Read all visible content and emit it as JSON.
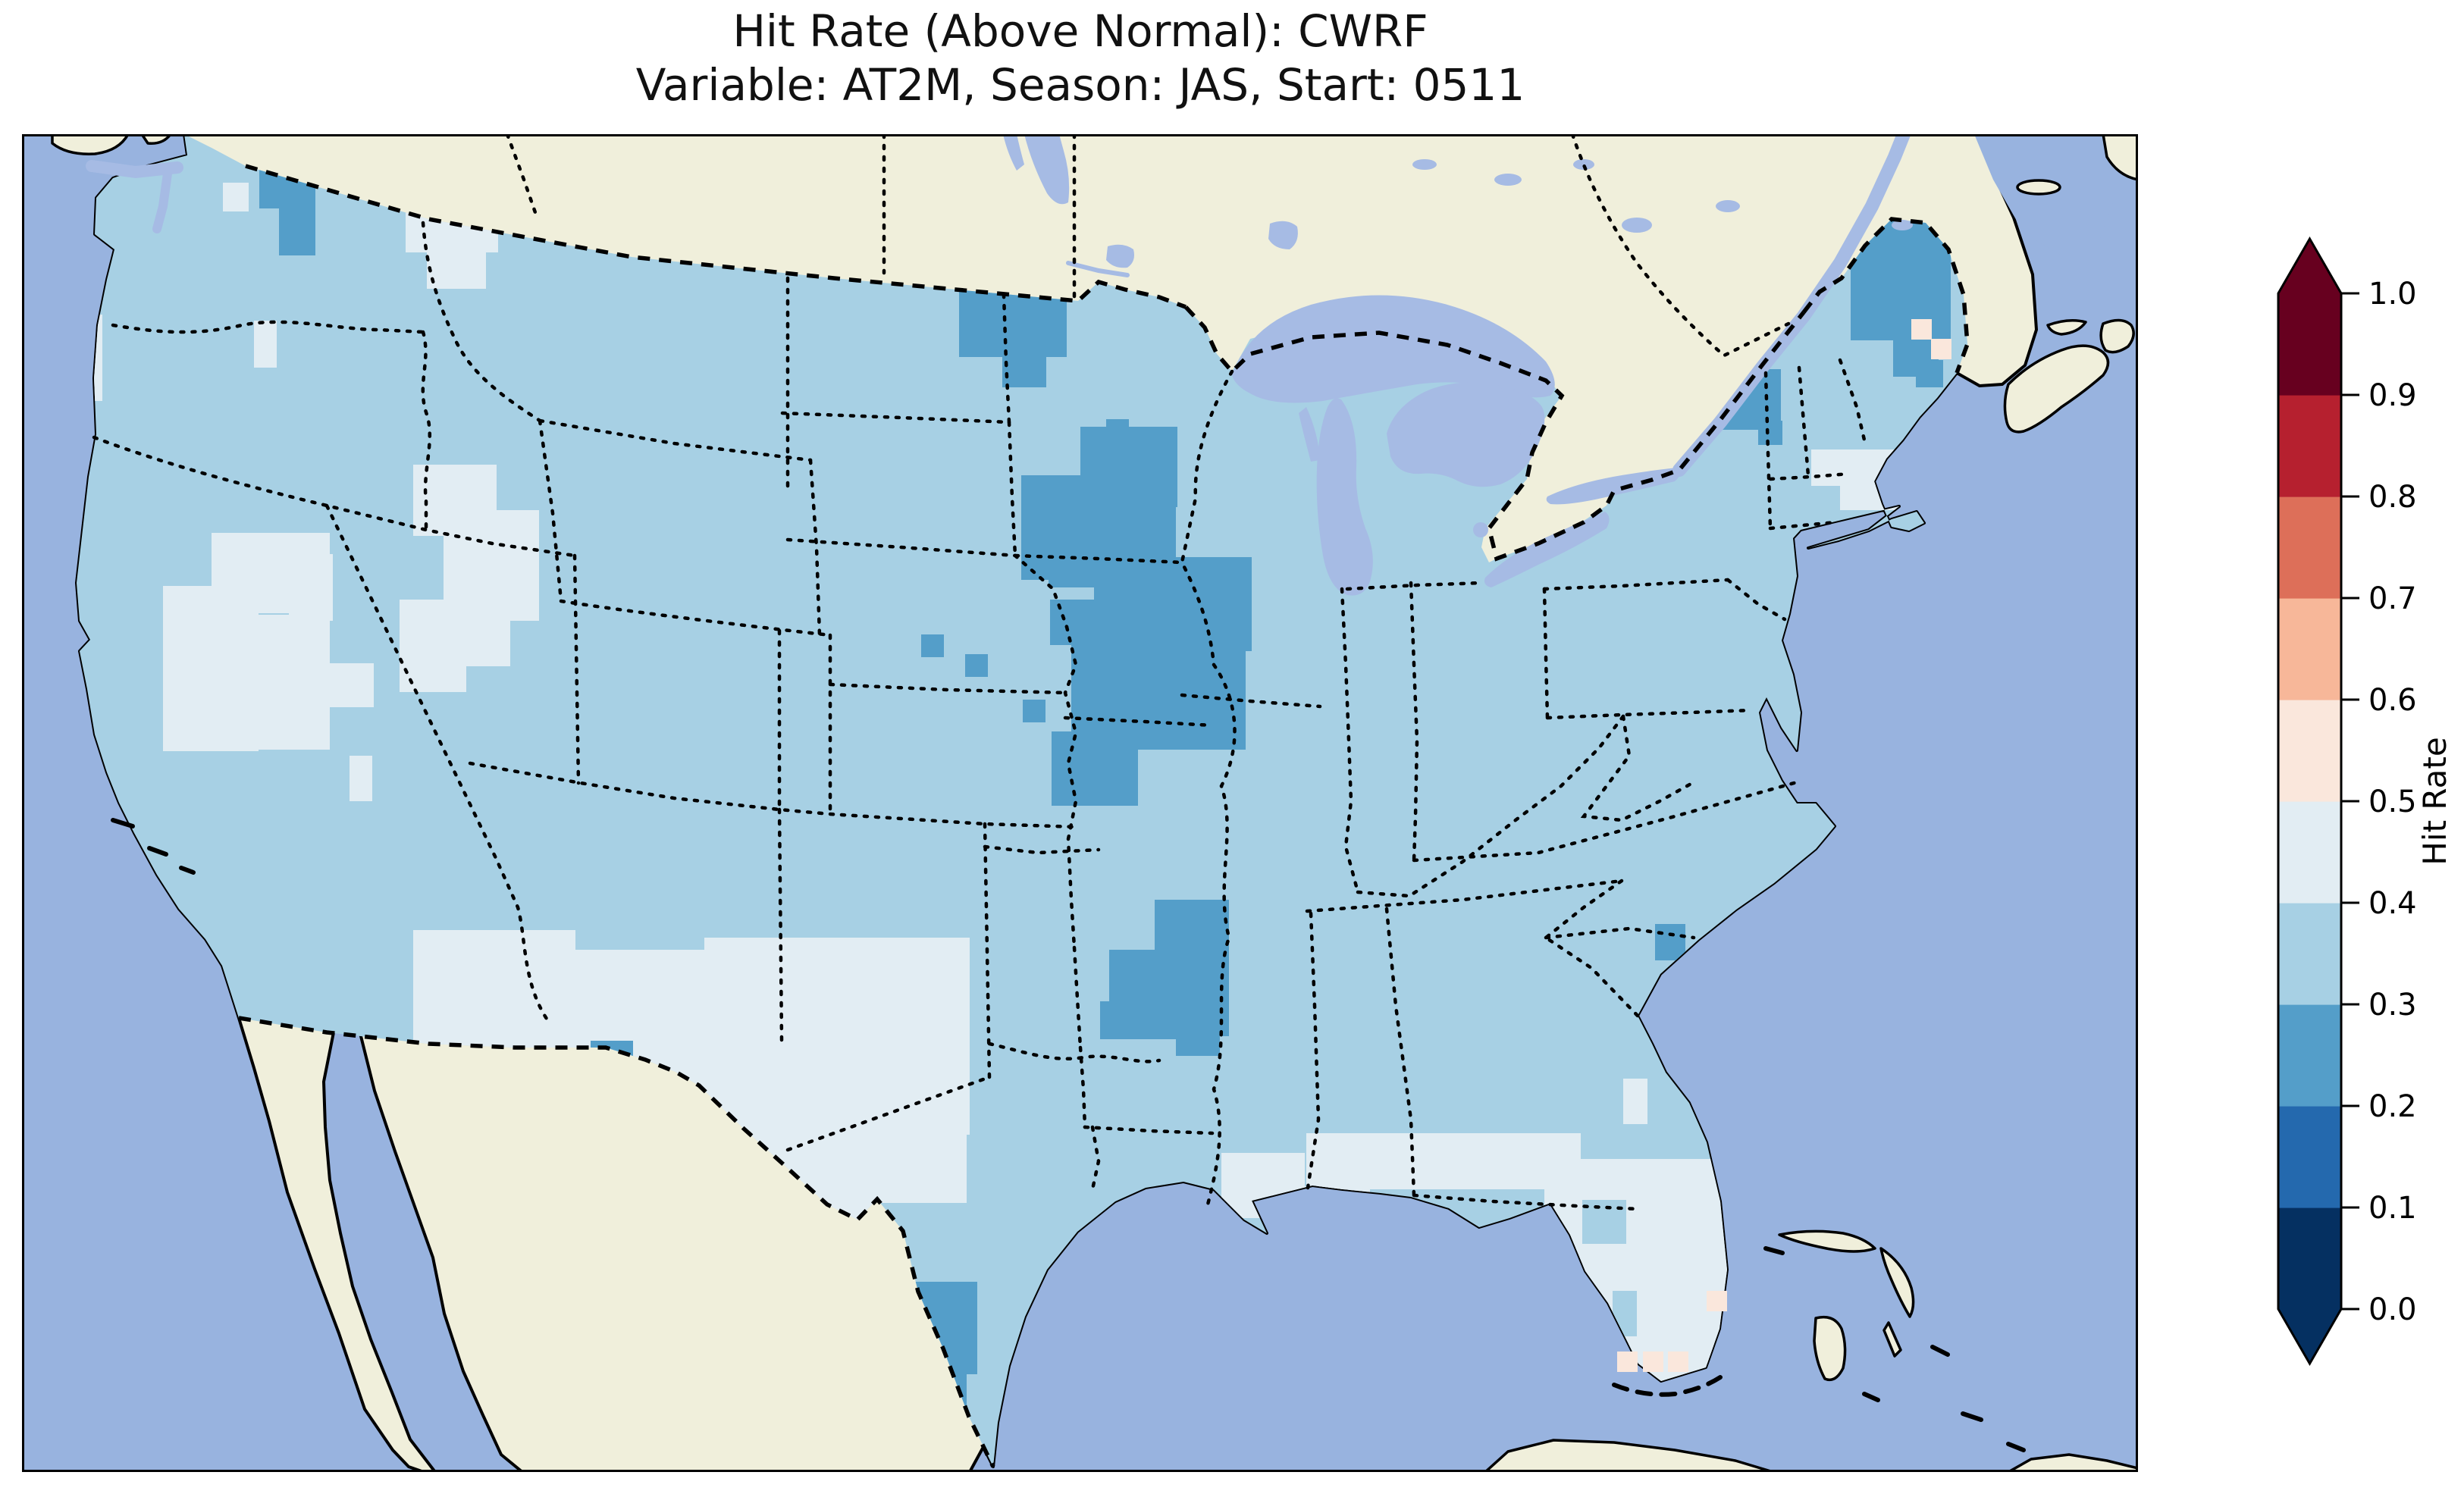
{
  "title": {
    "line1": "Hit Rate (Above Normal): CWRF",
    "line2": "Variable: AT2M, Season: JAS, Start: 0511"
  },
  "colorbar": {
    "label": "Hit Rate",
    "ticks": [
      "0.0",
      "0.1",
      "0.2",
      "0.3",
      "0.4",
      "0.5",
      "0.6",
      "0.7",
      "0.8",
      "0.9",
      "1.0"
    ],
    "bin_colors_bottom_to_top": [
      "#053061",
      "#2469ae",
      "#549ec9",
      "#a7d0e4",
      "#e2edf3",
      "#fae7dc",
      "#f7b799",
      "#dd6f59",
      "#b6202f",
      "#67001f"
    ],
    "extend": "both",
    "outline_color": "#000000"
  },
  "map": {
    "ocean_color": "#98b3df",
    "land_color": "#f0efdb",
    "lake_color": "#a6bbe4",
    "coast_color": "#000000",
    "border_color": "#000000",
    "base_bin": "0.3-0.4"
  },
  "chart_data": {
    "type": "heatmap",
    "title": "Hit Rate (Above Normal): CWRF",
    "subtitle": "Variable: AT2M, Season: JAS, Start: 0511",
    "metric": "Hit Rate (Above Normal)",
    "model": "CWRF",
    "variable": "AT2M",
    "season": "JAS",
    "start": "0511",
    "region": "CONUS",
    "colormap": "RdBu_r",
    "levels": [
      0.0,
      0.1,
      0.2,
      0.3,
      0.4,
      0.5,
      0.6,
      0.7,
      0.8,
      0.9,
      1.0
    ],
    "legend_position": "right",
    "bin_color_map": {
      "0.2-0.3": "#549ec9",
      "0.3-0.4": "#a7d0e4",
      "0.4-0.5": "#e2edf3",
      "0.5-0.6": "#fae7dc"
    },
    "base_value": "0.3-0.4",
    "summary": {
      "most_of_conus": "0.3-0.4",
      "interior_west_texas_florida_gulf": "0.4-0.5",
      "upper_midwest_nebraska_arkansas_wa_maine_ny_stx": "0.2-0.3",
      "florida_keys_miami_east_maine": "0.5-0.6"
    },
    "cells_key": [
      "x",
      "y",
      "w",
      "h",
      "value"
    ],
    "cells": [
      [
        265,
        64,
        34,
        38,
        "0.4-0.5"
      ],
      [
        306,
        246,
        30,
        62,
        "0.4-0.5"
      ],
      [
        72,
        238,
        34,
        114,
        "0.4-0.5"
      ],
      [
        46,
        426,
        30,
        60,
        "0.4-0.5"
      ],
      [
        506,
        92,
        122,
        64,
        "0.4-0.5"
      ],
      [
        534,
        154,
        78,
        50,
        "0.4-0.5"
      ],
      [
        250,
        526,
        156,
        106,
        "0.4-0.5"
      ],
      [
        186,
        596,
        126,
        218,
        "0.4-0.5"
      ],
      [
        298,
        634,
        108,
        178,
        "0.4-0.5"
      ],
      [
        352,
        554,
        58,
        88,
        "0.4-0.5"
      ],
      [
        406,
        698,
        58,
        58,
        "0.4-0.5"
      ],
      [
        432,
        820,
        30,
        60,
        "0.4-0.5"
      ],
      [
        516,
        436,
        110,
        94,
        "0.4-0.5"
      ],
      [
        556,
        496,
        126,
        146,
        "0.4-0.5"
      ],
      [
        498,
        614,
        88,
        122,
        "0.4-0.5"
      ],
      [
        624,
        526,
        58,
        86,
        "0.4-0.5"
      ],
      [
        584,
        642,
        60,
        60,
        "0.4-0.5"
      ],
      [
        516,
        1050,
        214,
        190,
        "0.4-0.5"
      ],
      [
        652,
        1076,
        314,
        260,
        "0.4-0.5"
      ],
      [
        900,
        1060,
        350,
        260,
        "0.4-0.5"
      ],
      [
        1006,
        1180,
        240,
        230,
        "0.4-0.5"
      ],
      [
        796,
        1280,
        314,
        164,
        "0.4-0.5"
      ],
      [
        980,
        1382,
        148,
        130,
        "0.4-0.5"
      ],
      [
        728,
        1190,
        78,
        68,
        "0.4-0.5"
      ],
      [
        1066,
        1320,
        120,
        90,
        "0.4-0.5"
      ],
      [
        1582,
        1344,
        110,
        86,
        "0.4-0.5"
      ],
      [
        1648,
        1388,
        130,
        66,
        "0.4-0.5"
      ],
      [
        1694,
        1318,
        362,
        74,
        "0.4-0.5"
      ],
      [
        2008,
        1352,
        246,
        122,
        "0.4-0.5"
      ],
      [
        2036,
        1470,
        230,
        152,
        "0.4-0.5"
      ],
      [
        2064,
        1596,
        188,
        100,
        "0.4-0.5"
      ],
      [
        2360,
        416,
        128,
        48,
        "0.4-0.5"
      ],
      [
        2398,
        454,
        94,
        42,
        "0.4-0.5"
      ],
      [
        2462,
        168,
        56,
        84,
        "0.4-0.5"
      ],
      [
        2112,
        1246,
        32,
        60,
        "0.4-0.5"
      ],
      [
        2058,
        1406,
        58,
        58,
        "0.3-0.4"
      ],
      [
        2098,
        1526,
        32,
        60,
        "0.3-0.4"
      ],
      [
        2034,
        1558,
        32,
        32,
        "0.3-0.4"
      ],
      [
        313,
        24,
        74,
        74,
        "0.2-0.3"
      ],
      [
        339,
        96,
        48,
        64,
        "0.2-0.3"
      ],
      [
        1236,
        204,
        142,
        90,
        "0.2-0.3"
      ],
      [
        1293,
        292,
        58,
        42,
        "0.2-0.3"
      ],
      [
        1430,
        376,
        30,
        30,
        "0.2-0.3"
      ],
      [
        1682,
        294,
        30,
        30,
        "0.2-0.3"
      ],
      [
        1318,
        450,
        124,
        138,
        "0.2-0.3"
      ],
      [
        1396,
        386,
        128,
        106,
        "0.2-0.3"
      ],
      [
        1354,
        476,
        168,
        122,
        "0.2-0.3"
      ],
      [
        1414,
        558,
        208,
        124,
        "0.2-0.3"
      ],
      [
        1456,
        678,
        158,
        134,
        "0.2-0.3"
      ],
      [
        1524,
        582,
        86,
        94,
        "0.2-0.3"
      ],
      [
        1486,
        656,
        126,
        154,
        "0.2-0.3"
      ],
      [
        1356,
        614,
        60,
        60,
        "0.2-0.3"
      ],
      [
        1384,
        670,
        88,
        122,
        "0.2-0.3"
      ],
      [
        1358,
        788,
        114,
        98,
        "0.2-0.3"
      ],
      [
        1186,
        660,
        30,
        30,
        "0.2-0.3"
      ],
      [
        1244,
        686,
        30,
        30,
        "0.2-0.3"
      ],
      [
        1320,
        746,
        30,
        30,
        "0.2-0.3"
      ],
      [
        1494,
        1010,
        98,
        94,
        "0.2-0.3"
      ],
      [
        1434,
        1076,
        158,
        114,
        "0.2-0.3"
      ],
      [
        1422,
        1144,
        106,
        50,
        "0.2-0.3"
      ],
      [
        1522,
        1184,
        58,
        32,
        "0.2-0.3"
      ],
      [
        1158,
        1514,
        102,
        122,
        "0.2-0.3"
      ],
      [
        1188,
        1626,
        58,
        58,
        "0.2-0.3"
      ],
      [
        750,
        1196,
        56,
        56,
        "0.2-0.3"
      ],
      [
        2412,
        104,
        132,
        168,
        "0.2-0.3"
      ],
      [
        2468,
        260,
        60,
        60,
        "0.2-0.3"
      ],
      [
        2498,
        298,
        36,
        36,
        "0.2-0.3"
      ],
      [
        2242,
        310,
        78,
        80,
        "0.2-0.3"
      ],
      [
        2212,
        344,
        32,
        32,
        "0.2-0.3"
      ],
      [
        2290,
        378,
        32,
        32,
        "0.2-0.3"
      ],
      [
        2154,
        1042,
        40,
        48,
        "0.2-0.3"
      ]
    ],
    "cells_open_water": [
      [
        2104,
        1606,
        27,
        27,
        "0.5-0.6"
      ],
      [
        2138,
        1606,
        27,
        27,
        "0.5-0.6"
      ],
      [
        2171,
        1606,
        27,
        27,
        "0.5-0.6"
      ],
      [
        2222,
        1526,
        27,
        27,
        "0.5-0.6"
      ],
      [
        2492,
        244,
        27,
        27,
        "0.5-0.6"
      ],
      [
        2518,
        270,
        27,
        27,
        "0.5-0.6"
      ]
    ]
  }
}
